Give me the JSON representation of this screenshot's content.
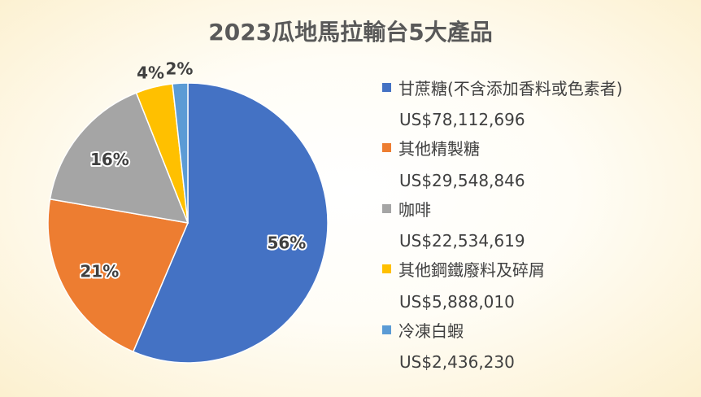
{
  "chart_data": {
    "type": "pie",
    "title": "2023瓜地馬拉輸台5大產品",
    "categories": [
      "甘蔗糖(不含添加香料或色素者)",
      "其他精製糖",
      "咖啡",
      "其他鋼鐵廢料及碎屑",
      "冷凍白蝦"
    ],
    "value_labels": [
      "US$78,112,696",
      "US$29,548,846",
      "US$22,534,619",
      "US$5,888,010",
      "US$2,436,230"
    ],
    "values": [
      78112696,
      29548846,
      22534619,
      5888010,
      2436230
    ],
    "percent_labels": [
      "56%",
      "21%",
      "16%",
      "4%",
      "2%"
    ],
    "colors": [
      "#4472c4",
      "#ed7d31",
      "#a5a5a5",
      "#ffc000",
      "#5b9bd5"
    ],
    "legend_position": "right"
  }
}
